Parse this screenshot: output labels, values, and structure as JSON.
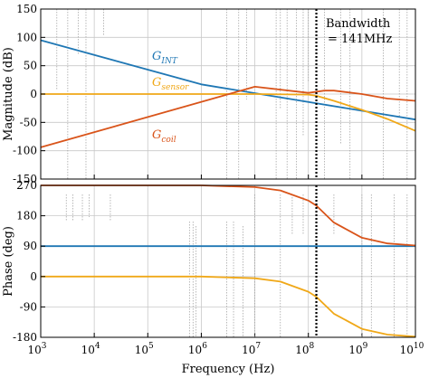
{
  "chart_data": [
    {
      "type": "line",
      "panel": "magnitude",
      "xscale": "log",
      "xlim": [
        "10^3",
        "10^10"
      ],
      "ylabel": "Magnitude (dB)",
      "ylim": [
        -150,
        150
      ],
      "yticks": [
        "150",
        "100",
        "50",
        "0",
        "-50",
        "-100",
        "-150"
      ],
      "grid": true,
      "series": [
        {
          "name": "G_INT",
          "label_main": "G",
          "label_sub": "INT",
          "color": "#1f77b4",
          "x": [
            1000,
            1000000,
            10000000000
          ],
          "y": [
            95,
            17,
            -45
          ]
        },
        {
          "name": "G_sensor",
          "label_main": "G",
          "label_sub": "sensor",
          "color": "#f0a818",
          "x": [
            1000,
            10000000,
            100000000,
            141000000,
            300000000,
            1000000000,
            3000000000,
            10000000000
          ],
          "y": [
            0,
            0,
            -1,
            -3,
            -12,
            -28,
            -44,
            -65
          ]
        },
        {
          "name": "G_coil",
          "label_main": "G",
          "label_sub": "coil",
          "color": "#d9541a",
          "x": [
            1000,
            10000000,
            100000000,
            200000000,
            300000000,
            1000000000,
            3000000000,
            10000000000
          ],
          "y": [
            -94,
            13,
            2,
            6,
            6,
            0,
            -8,
            -12
          ]
        }
      ],
      "annotation": {
        "line1": "Bandwidth",
        "line2": "= 141MHz",
        "x": 141000000
      }
    },
    {
      "type": "line",
      "panel": "phase",
      "xscale": "log",
      "xlabel": "Frequency (Hz)",
      "xlim": [
        "10^3",
        "10^10"
      ],
      "xticks": [
        {
          "base": "10",
          "exp": "3"
        },
        {
          "base": "10",
          "exp": "4"
        },
        {
          "base": "10",
          "exp": "5"
        },
        {
          "base": "10",
          "exp": "6"
        },
        {
          "base": "10",
          "exp": "7"
        },
        {
          "base": "10",
          "exp": "8"
        },
        {
          "base": "10",
          "exp": "9"
        },
        {
          "base": "10",
          "exp": "10"
        }
      ],
      "ylabel": "Phase (deg)",
      "ylim": [
        -180,
        270
      ],
      "yticks": [
        "270",
        "180",
        "90",
        "0",
        "-90",
        "-180"
      ],
      "grid": true,
      "series": [
        {
          "name": "G_INT",
          "color": "#1f77b4",
          "x": [
            1000,
            10000000000
          ],
          "y": [
            90,
            90
          ]
        },
        {
          "name": "G_sensor",
          "color": "#f0a818",
          "x": [
            1000,
            1000000,
            10000000,
            30000000,
            100000000,
            141000000,
            300000000,
            1000000000,
            3000000000,
            10000000000
          ],
          "y": [
            0,
            0,
            -5,
            -15,
            -45,
            -60,
            -110,
            -155,
            -172,
            -178
          ]
        },
        {
          "name": "G_coil",
          "color": "#d9541a",
          "x": [
            1000,
            1000000,
            10000000,
            30000000,
            100000000,
            141000000,
            300000000,
            1000000000,
            3000000000,
            10000000000
          ],
          "y": [
            270,
            270,
            265,
            255,
            225,
            210,
            160,
            115,
            98,
            92
          ]
        }
      ],
      "annotation": {
        "x": 141000000
      }
    }
  ]
}
